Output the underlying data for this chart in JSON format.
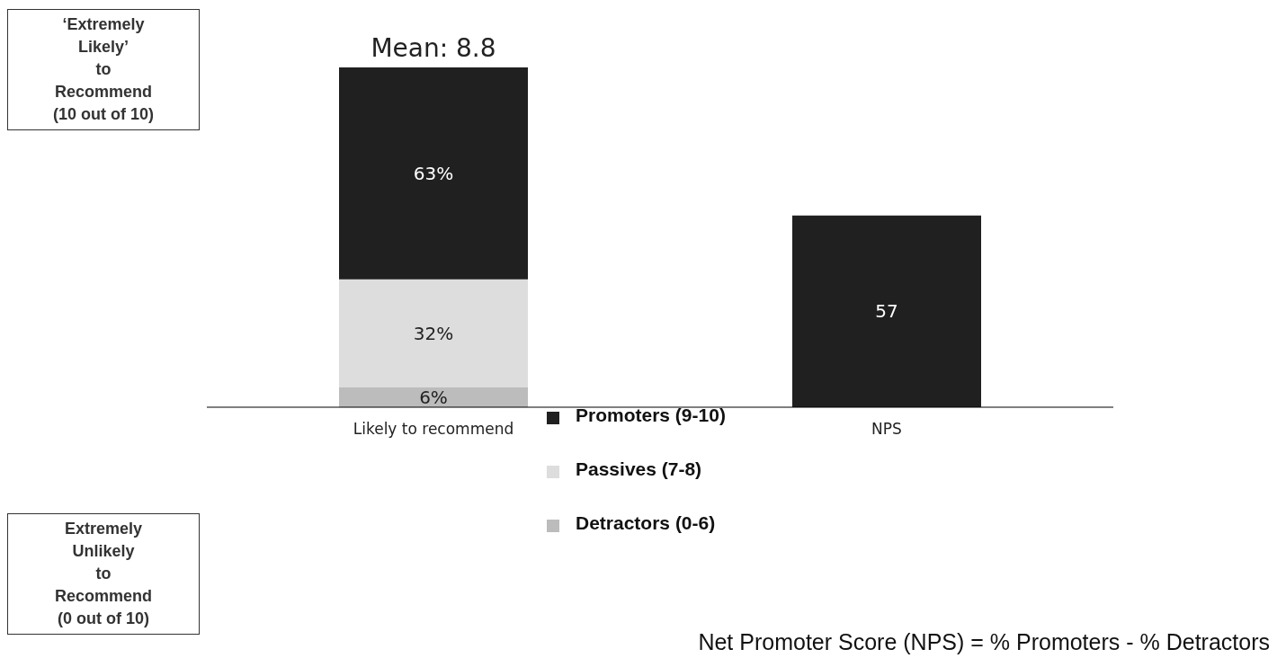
{
  "chart_data": {
    "type": "bar",
    "stacked": true,
    "categories": [
      "Likely to recommend",
      "NPS"
    ],
    "series": [
      {
        "name": "Detractors (0-6)",
        "color": "#bcbcbc",
        "values": [
          6,
          null
        ],
        "value_labels": [
          "6%",
          null
        ]
      },
      {
        "name": "Passives (7-8)",
        "color": "#dddddd",
        "values": [
          32,
          null
        ],
        "value_labels": [
          "32%",
          null
        ]
      },
      {
        "name": "Promoters (9-10)",
        "color": "#202020",
        "values": [
          63,
          57
        ],
        "value_labels": [
          "63%",
          "57"
        ]
      }
    ],
    "legend": "bottom",
    "annotations": [
      {
        "text": "Mean: 8.8",
        "x": "Likely to recommend",
        "y": 101
      },
      "‘Extremely\nLikely’\nto\nRecommend\n(10 out of 10)",
      "Extremely\nUnlikely\nto\nRecommend\n(0 out of 10)",
      "Net Promoter Score (NPS) = % Promoters - % Detractors"
    ]
  }
}
